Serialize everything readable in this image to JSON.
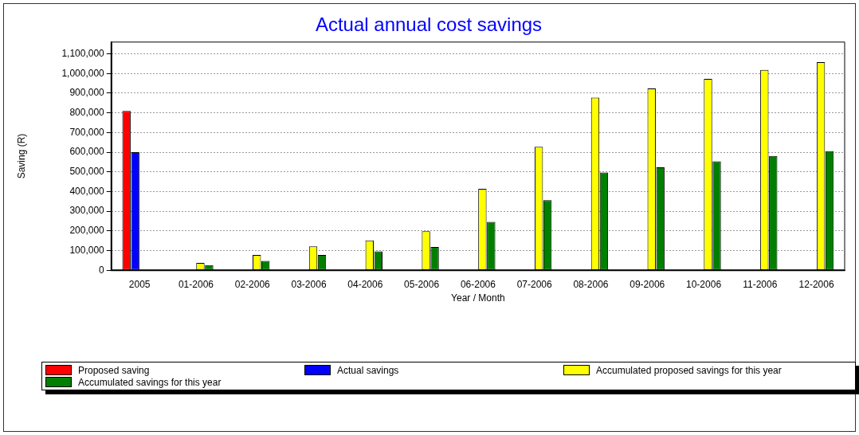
{
  "chart_data": {
    "type": "bar",
    "title": "Actual annual cost savings",
    "xlabel": "Year / Month",
    "ylabel": "Saving (R)",
    "categories": [
      "2005",
      "01-2006",
      "02-2006",
      "03-2006",
      "04-2006",
      "05-2006",
      "06-2006",
      "07-2006",
      "08-2006",
      "09-2006",
      "10-2006",
      "11-2006",
      "12-2006"
    ],
    "series": [
      {
        "name": "Proposed saving",
        "color": "#ff0000",
        "values": [
          810000,
          null,
          null,
          null,
          null,
          null,
          null,
          null,
          null,
          null,
          null,
          null,
          null
        ]
      },
      {
        "name": "Actual savings",
        "color": "#0000ff",
        "values": [
          600000,
          null,
          null,
          null,
          null,
          null,
          null,
          null,
          null,
          null,
          null,
          null,
          null
        ]
      },
      {
        "name": "Accumulated proposed savings for this year",
        "color": "#ffff00",
        "values": [
          null,
          37000,
          78000,
          121000,
          152000,
          198000,
          414000,
          628000,
          878000,
          924000,
          973000,
          1018000,
          1058000
        ]
      },
      {
        "name": "Accumulated savings for this year",
        "color": "#007f00",
        "values": [
          null,
          26000,
          47000,
          78000,
          96000,
          118000,
          246000,
          356000,
          497000,
          523000,
          554000,
          581000,
          605000
        ]
      }
    ],
    "ylim": [
      0,
      1160000
    ],
    "yticks": [
      {
        "value": 0,
        "label": "0"
      },
      {
        "value": 100000,
        "label": "100,000"
      },
      {
        "value": 200000,
        "label": "200,000"
      },
      {
        "value": 300000,
        "label": "300,000"
      },
      {
        "value": 400000,
        "label": "400,000"
      },
      {
        "value": 500000,
        "label": "500,000"
      },
      {
        "value": 600000,
        "label": "600,000"
      },
      {
        "value": 700000,
        "label": "700,000"
      },
      {
        "value": 800000,
        "label": "800,000"
      },
      {
        "value": 900000,
        "label": "900,000"
      },
      {
        "value": 1000000,
        "label": "1,000,000"
      },
      {
        "value": 1100000,
        "label": "1,100,000"
      }
    ],
    "grid": "y",
    "legend": "bottom"
  }
}
